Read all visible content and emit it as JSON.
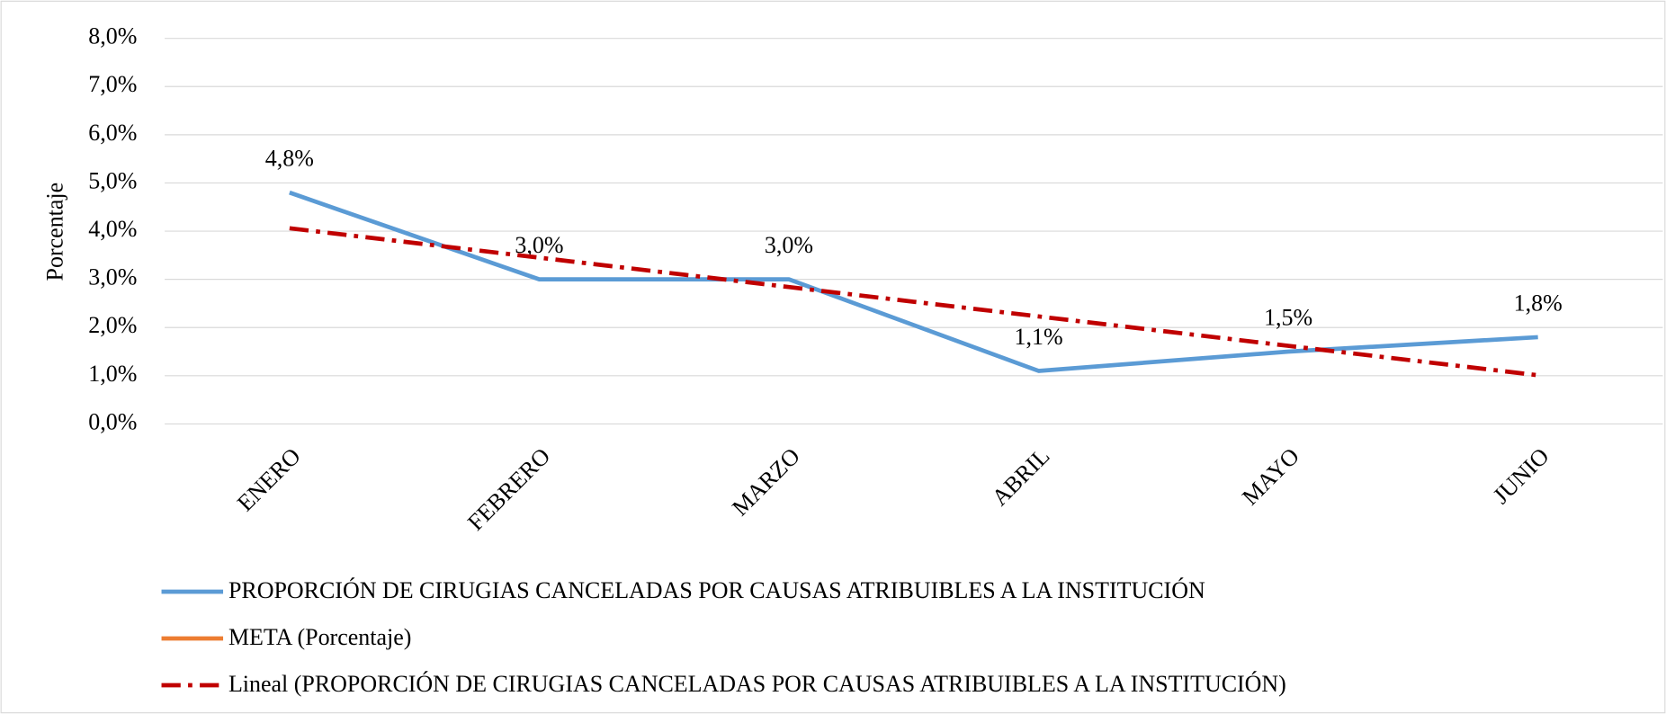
{
  "chart_data": {
    "type": "line",
    "y_label": "Porcentaje",
    "categories": [
      "ENERO",
      "FEBRERO",
      "MARZO",
      "ABRIL",
      "MAYO",
      "JUNIO"
    ],
    "series": [
      {
        "name": "PROPORCIÓN DE CIRUGIAS CANCELADAS POR CAUSAS ATRIBUIBLES A LA INSTITUCIÓN",
        "color": "#5b9bd5",
        "line_style": "solid",
        "values": [
          4.8,
          3.0,
          3.0,
          1.1,
          1.5,
          1.8
        ],
        "value_labels": [
          "4,8%",
          "3,0%",
          "3,0%",
          "1,1%",
          "1,5%",
          "1,8%"
        ]
      },
      {
        "name": "META (Porcentaje)",
        "color": "#ed7d31",
        "line_style": "solid",
        "values": [
          null,
          null,
          null,
          null,
          null,
          null
        ]
      },
      {
        "name": "Lineal (PROPORCIÓN DE CIRUGIAS CANCELADAS POR CAUSAS ATRIBUIBLES A LA INSTITUCIÓN)",
        "color": "#c00000",
        "line_style": "dash-dot",
        "values": [
          4.06,
          3.45,
          2.84,
          2.23,
          1.62,
          1.01
        ]
      }
    ],
    "ylim": [
      0,
      8
    ],
    "yticks": [
      {
        "value": 0,
        "label": "0,0%"
      },
      {
        "value": 1,
        "label": "1,0%"
      },
      {
        "value": 2,
        "label": "2,0%"
      },
      {
        "value": 3,
        "label": "3,0%"
      },
      {
        "value": 4,
        "label": "4,0%"
      },
      {
        "value": 5,
        "label": "5,0%"
      },
      {
        "value": 6,
        "label": "6,0%"
      },
      {
        "value": 7,
        "label": "7,0%"
      },
      {
        "value": 8,
        "label": "8,0%"
      }
    ],
    "grid": true,
    "legend": "bottom"
  }
}
